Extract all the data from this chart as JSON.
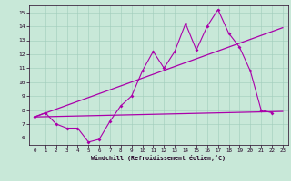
{
  "xlabel": "Windchill (Refroidissement éolien,°C)",
  "xlim": [
    -0.5,
    23.5
  ],
  "ylim": [
    5.5,
    15.5
  ],
  "xticks": [
    0,
    1,
    2,
    3,
    4,
    5,
    6,
    7,
    8,
    9,
    10,
    11,
    12,
    13,
    14,
    15,
    16,
    17,
    18,
    19,
    20,
    21,
    22,
    23
  ],
  "yticks": [
    6,
    7,
    8,
    9,
    10,
    11,
    12,
    13,
    14,
    15
  ],
  "bg_color": "#c8e8d8",
  "line_color": "#aa00aa",
  "line1_x": [
    0,
    1,
    2,
    3,
    4,
    5,
    6,
    7,
    8,
    9,
    10,
    11,
    12,
    13,
    14,
    15,
    16,
    17,
    18,
    19,
    20,
    21,
    22
  ],
  "line1_y": [
    7.5,
    7.8,
    7.0,
    6.7,
    6.7,
    5.7,
    5.9,
    7.2,
    8.3,
    9.0,
    10.8,
    12.2,
    11.0,
    12.2,
    14.2,
    12.3,
    14.0,
    15.2,
    13.5,
    12.5,
    10.8,
    8.0,
    7.8
  ],
  "line2_x": [
    0,
    23
  ],
  "line2_y": [
    7.5,
    13.9
  ],
  "line3_x": [
    0,
    23
  ],
  "line3_y": [
    7.5,
    7.9
  ]
}
